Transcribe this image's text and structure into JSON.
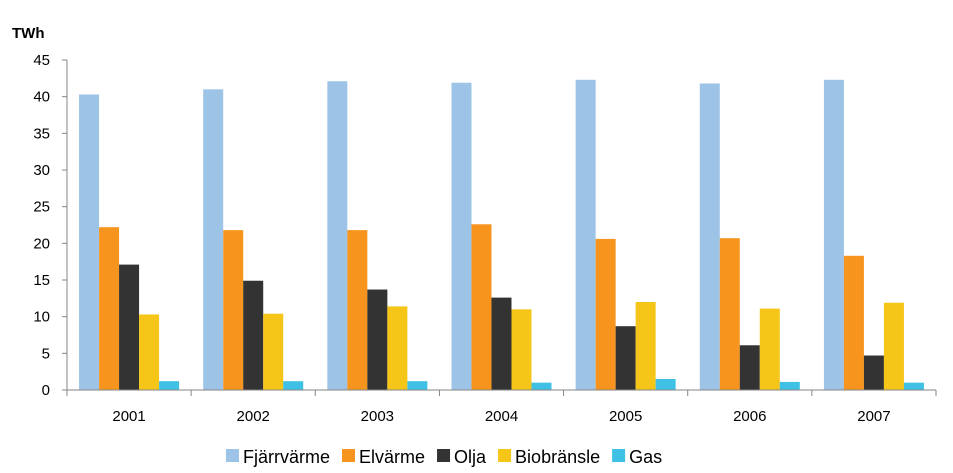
{
  "chart_data": {
    "type": "bar",
    "ylabel": "TWh",
    "xlabel": "",
    "ylim": [
      0,
      45
    ],
    "yticks": [
      0,
      5,
      10,
      15,
      20,
      25,
      30,
      35,
      40,
      45
    ],
    "grid": false,
    "legend_position": "bottom",
    "categories": [
      "2001",
      "2002",
      "2003",
      "2004",
      "2005",
      "2006",
      "2007"
    ],
    "series": [
      {
        "name": "Fjärrvärme",
        "color": "#9dc3e6",
        "values": [
          40.3,
          41.0,
          42.1,
          41.9,
          42.3,
          41.8,
          42.3
        ]
      },
      {
        "name": "Elvärme",
        "color": "#f7941d",
        "values": [
          22.2,
          21.8,
          21.8,
          22.6,
          20.6,
          20.7,
          18.3
        ]
      },
      {
        "name": "Olja",
        "color": "#333333",
        "values": [
          17.1,
          14.9,
          13.7,
          12.6,
          8.7,
          6.1,
          4.7
        ]
      },
      {
        "name": "Biobränsle",
        "color": "#f5c518",
        "values": [
          10.3,
          10.4,
          11.4,
          11.0,
          12.0,
          11.1,
          11.9
        ]
      },
      {
        "name": "Gas",
        "color": "#3ec1e5",
        "values": [
          1.2,
          1.2,
          1.2,
          1.0,
          1.5,
          1.1,
          1.0
        ]
      }
    ]
  }
}
